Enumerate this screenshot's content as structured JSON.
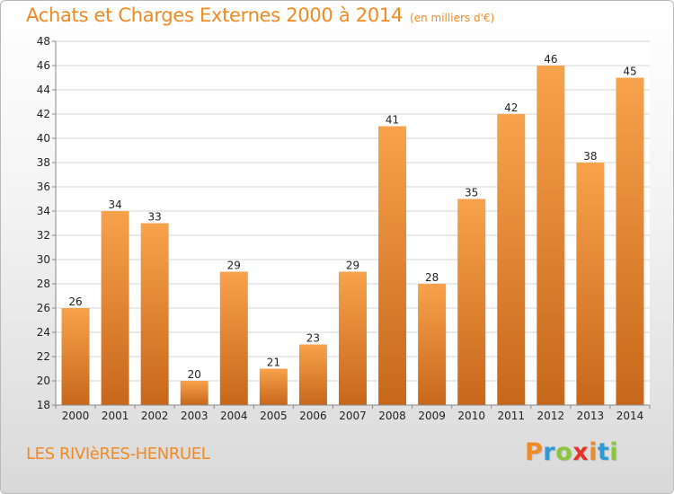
{
  "title": "Achats et Charges Externes 2000 à 2014",
  "unit": "(en milliers d'€)",
  "commune": "LES RIVIèRES-HENRUEL",
  "logo": {
    "text": "Proxiti",
    "letters": [
      {
        "ch": "P",
        "color": "#f08a22"
      },
      {
        "ch": "r",
        "color": "#2f9ad6"
      },
      {
        "ch": "o",
        "color": "#8cc63f"
      },
      {
        "ch": "x",
        "color": "#e6332a"
      },
      {
        "ch": "i",
        "color": "#f08a22"
      },
      {
        "ch": "t",
        "color": "#2f9ad6"
      },
      {
        "ch": "i",
        "color": "#8cc63f"
      }
    ]
  },
  "colors": {
    "accent": "#f08a22",
    "bar_top": "#f7a24c",
    "bar_bottom": "#c8671a"
  },
  "chart_data": {
    "type": "bar",
    "title": "Achats et Charges Externes 2000 à 2014",
    "subtitle": "(en milliers d'€)",
    "categories": [
      "2000",
      "2001",
      "2002",
      "2003",
      "2004",
      "2005",
      "2006",
      "2007",
      "2008",
      "2009",
      "2010",
      "2011",
      "2012",
      "2013",
      "2014"
    ],
    "values": [
      26,
      34,
      33,
      20,
      29,
      21,
      23,
      29,
      41,
      28,
      35,
      42,
      46,
      38,
      45
    ],
    "ylim": [
      18,
      48
    ],
    "yticks": [
      18,
      20,
      22,
      24,
      26,
      28,
      30,
      32,
      34,
      36,
      38,
      40,
      42,
      44,
      46,
      48
    ],
    "grid": true,
    "data_labels": true
  }
}
